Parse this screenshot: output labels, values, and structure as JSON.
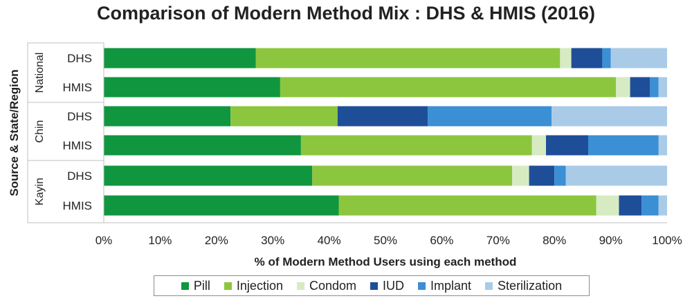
{
  "chart_data": {
    "type": "bar",
    "orientation": "horizontal",
    "stacked": true,
    "title": "Comparison of Modern Method Mix : DHS & HMIS (2016)",
    "xlabel": "% of Modern Method Users using each method",
    "ylabel": "Source & State/Region",
    "xlim": [
      0,
      100
    ],
    "x_tick_labels": [
      "0%",
      "10%",
      "20%",
      "30%",
      "40%",
      "50%",
      "60%",
      "70%",
      "80%",
      "90%",
      "100%"
    ],
    "groups": [
      {
        "label": "National",
        "bars": [
          "DHS",
          "HMIS"
        ]
      },
      {
        "label": "Chin",
        "bars": [
          "DHS",
          "HMIS"
        ]
      },
      {
        "label": "Kayin",
        "bars": [
          "DHS",
          "HMIS"
        ]
      }
    ],
    "series": [
      {
        "name": "Pill",
        "color": "#10963f",
        "values": [
          27,
          31,
          22.5,
          35,
          37,
          41.5
        ]
      },
      {
        "name": "Injection",
        "color": "#8cc63f",
        "values": [
          54,
          59,
          19,
          41,
          35.5,
          45.5
        ]
      },
      {
        "name": "Condom",
        "color": "#d6ebc2",
        "values": [
          2,
          2.5,
          0,
          2.5,
          3,
          4
        ]
      },
      {
        "name": "IUD",
        "color": "#1f4e99",
        "values": [
          5.5,
          3.5,
          16,
          7.5,
          4.5,
          4
        ]
      },
      {
        "name": "Implant",
        "color": "#3b8fd4",
        "values": [
          1.5,
          1.5,
          22,
          12.5,
          2,
          3
        ]
      },
      {
        "name": "Sterilization",
        "color": "#a9cbe7",
        "values": [
          10,
          1.5,
          20.5,
          1.5,
          18,
          1.5
        ]
      }
    ],
    "grid": false,
    "legend_position": "bottom"
  }
}
